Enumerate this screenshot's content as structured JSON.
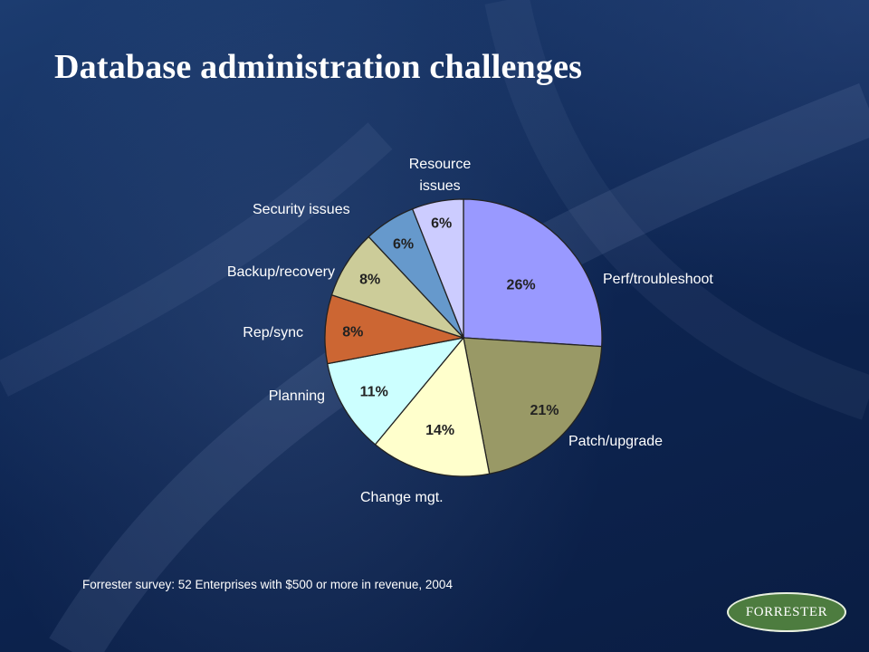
{
  "slide": {
    "title": "Database administration challenges",
    "source": "Forrester survey: 52 Enterprises with $500 or more in revenue, 2004",
    "logo_text": "FORRESTER"
  },
  "colors": {
    "background": "#0f2a55",
    "label_text": "#ffffff",
    "value_text": "#222222",
    "slice_border": "#222222"
  },
  "chart_data": {
    "type": "pie",
    "title": "Database administration challenges",
    "start_angle_deg": 0,
    "direction": "clockwise",
    "legend": "none",
    "slices": [
      {
        "label": "Perf/troubleshoot",
        "value": 26,
        "value_label": "26%",
        "color": "#9999ff"
      },
      {
        "label": "Patch/upgrade",
        "value": 21,
        "value_label": "21%",
        "color": "#999966"
      },
      {
        "label": "Change mgt.",
        "value": 14,
        "value_label": "14%",
        "color": "#ffffcc"
      },
      {
        "label": "Planning",
        "value": 11,
        "value_label": "11%",
        "color": "#ccffff"
      },
      {
        "label": "Rep/sync",
        "value": 8,
        "value_label": "8%",
        "color": "#cc6633"
      },
      {
        "label": "Backup/recovery",
        "value": 8,
        "value_label": "8%",
        "color": "#cccc99"
      },
      {
        "label": "Security issues",
        "value": 6,
        "value_label": "6%",
        "color": "#6699cc"
      },
      {
        "label": "Resource issues",
        "value": 6,
        "value_label": "6%",
        "color": "#ccccff"
      }
    ]
  }
}
